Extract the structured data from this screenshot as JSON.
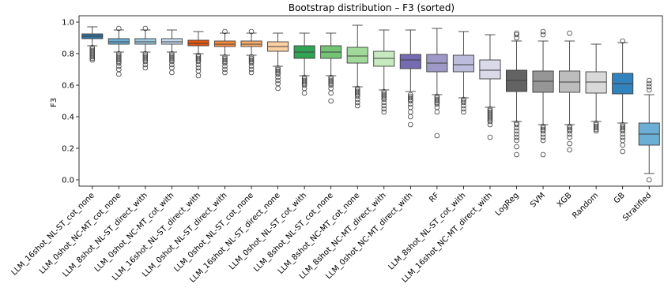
{
  "chart_data": {
    "type": "box",
    "title": "Bootstrap distribution – F3 (sorted)",
    "xlabel": "",
    "ylabel": "F3",
    "ylim": [
      -0.04,
      1.04
    ],
    "yticks": [
      0.0,
      0.2,
      0.4,
      0.6,
      0.8,
      1.0
    ],
    "ytick_labels": [
      "0.0",
      "0.2",
      "0.4",
      "0.6",
      "0.8",
      "1.0"
    ],
    "grid": false,
    "categories": [
      "LLM_16shot_NL-ST_cot_none",
      "LLM_0shot_NC-MT_cot_none",
      "LLM_8shot_NL-ST_direct_with",
      "LLM_0shot_NC-MT_cot_with",
      "LLM_16shot_NL-ST_direct_with",
      "LLM_0shot_NL-ST_direct_with",
      "LLM_0shot_NL-ST_cot_none",
      "LLM_16shot_NL-ST_direct_none",
      "LLM_0shot_NL-ST_cot_with",
      "LLM_8shot_NL-ST_cot_none",
      "LLM_8shot_NC-MT_cot_none",
      "LLM_8shot_NC-MT_direct_with",
      "LLM_0shot_NC-MT_direct_with",
      "RF",
      "LLM_8shot_NL-ST_cot_with",
      "LLM_16shot_NC-MT_direct_with",
      "LogReg",
      "SVM",
      "XGB",
      "Random",
      "GB",
      "Stratified"
    ],
    "boxes": [
      {
        "color": "#3274a1",
        "q1": 0.895,
        "median": 0.91,
        "q3": 0.925,
        "whislo": 0.85,
        "whishi": 0.97,
        "fliers": [
          0.76,
          0.77,
          0.78,
          0.79,
          0.8,
          0.81,
          0.82,
          0.83,
          0.84
        ]
      },
      {
        "color": "#6baed6",
        "q1": 0.86,
        "median": 0.875,
        "q3": 0.895,
        "whislo": 0.81,
        "whishi": 0.95,
        "fliers": [
          0.67,
          0.7,
          0.72,
          0.74,
          0.75,
          0.76,
          0.77,
          0.78,
          0.79,
          0.8,
          0.96
        ]
      },
      {
        "color": "#9ecae1",
        "q1": 0.86,
        "median": 0.875,
        "q3": 0.895,
        "whislo": 0.81,
        "whishi": 0.95,
        "fliers": [
          0.71,
          0.73,
          0.75,
          0.76,
          0.77,
          0.78,
          0.79,
          0.8,
          0.96
        ]
      },
      {
        "color": "#c6dbef",
        "q1": 0.86,
        "median": 0.875,
        "q3": 0.895,
        "whislo": 0.81,
        "whishi": 0.95,
        "fliers": [
          0.68,
          0.71,
          0.73,
          0.75,
          0.76,
          0.77,
          0.78,
          0.79,
          0.8
        ]
      },
      {
        "color": "#e6550d",
        "q1": 0.85,
        "median": 0.865,
        "q3": 0.885,
        "whislo": 0.8,
        "whishi": 0.94,
        "fliers": [
          0.66,
          0.69,
          0.71,
          0.73,
          0.75,
          0.76,
          0.77,
          0.78,
          0.79
        ]
      },
      {
        "color": "#fd8d3c",
        "q1": 0.845,
        "median": 0.86,
        "q3": 0.88,
        "whislo": 0.79,
        "whishi": 0.93,
        "fliers": [
          0.68,
          0.7,
          0.72,
          0.74,
          0.75,
          0.76,
          0.77,
          0.78,
          0.94
        ]
      },
      {
        "color": "#fdae6b",
        "q1": 0.845,
        "median": 0.86,
        "q3": 0.88,
        "whislo": 0.79,
        "whishi": 0.93,
        "fliers": [
          0.68,
          0.7,
          0.72,
          0.74,
          0.75,
          0.76,
          0.77,
          0.78,
          0.94
        ]
      },
      {
        "color": "#fdd0a2",
        "q1": 0.815,
        "median": 0.845,
        "q3": 0.875,
        "whislo": 0.72,
        "whishi": 0.93,
        "fliers": [
          0.58,
          0.61,
          0.63,
          0.65,
          0.67,
          0.68,
          0.69,
          0.7,
          0.71
        ]
      },
      {
        "color": "#31a354",
        "q1": 0.77,
        "median": 0.81,
        "q3": 0.85,
        "whislo": 0.66,
        "whishi": 0.93,
        "fliers": [
          0.55,
          0.58,
          0.6,
          0.61,
          0.62,
          0.63,
          0.64,
          0.65
        ]
      },
      {
        "color": "#74c476",
        "q1": 0.77,
        "median": 0.81,
        "q3": 0.85,
        "whislo": 0.66,
        "whishi": 0.93,
        "fliers": [
          0.5,
          0.55,
          0.58,
          0.6,
          0.61,
          0.62,
          0.63,
          0.64,
          0.65
        ]
      },
      {
        "color": "#a1d99b",
        "q1": 0.74,
        "median": 0.785,
        "q3": 0.84,
        "whislo": 0.59,
        "whishi": 0.98,
        "fliers": [
          0.47,
          0.49,
          0.51,
          0.53,
          0.54,
          0.55,
          0.56,
          0.57,
          0.58
        ]
      },
      {
        "color": "#c7e9c0",
        "q1": 0.72,
        "median": 0.77,
        "q3": 0.815,
        "whislo": 0.57,
        "whishi": 0.95,
        "fliers": [
          0.43,
          0.45,
          0.47,
          0.49,
          0.51,
          0.52,
          0.53,
          0.54,
          0.55,
          0.56
        ]
      },
      {
        "color": "#756bb1",
        "q1": 0.705,
        "median": 0.76,
        "q3": 0.795,
        "whislo": 0.56,
        "whishi": 0.95,
        "fliers": [
          0.35,
          0.4,
          0.43,
          0.46,
          0.48,
          0.5,
          0.51,
          0.52,
          0.53,
          0.54
        ]
      },
      {
        "color": "#9e9ac8",
        "q1": 0.685,
        "median": 0.74,
        "q3": 0.795,
        "whislo": 0.54,
        "whishi": 0.96,
        "fliers": [
          0.28,
          0.43,
          0.46,
          0.48,
          0.49,
          0.5,
          0.51,
          0.52,
          0.53
        ]
      },
      {
        "color": "#bcbddc",
        "q1": 0.685,
        "median": 0.73,
        "q3": 0.79,
        "whislo": 0.52,
        "whishi": 0.94,
        "fliers": [
          0.43,
          0.45,
          0.47,
          0.49,
          0.5,
          0.51
        ]
      },
      {
        "color": "#dadaeb",
        "q1": 0.64,
        "median": 0.695,
        "q3": 0.76,
        "whislo": 0.46,
        "whishi": 0.92,
        "fliers": [
          0.27,
          0.35,
          0.37,
          0.38,
          0.39,
          0.4,
          0.41,
          0.42,
          0.43,
          0.44,
          0.45
        ]
      },
      {
        "color": "#636363",
        "q1": 0.56,
        "median": 0.63,
        "q3": 0.695,
        "whislo": 0.37,
        "whishi": 0.88,
        "fliers": [
          0.16,
          0.21,
          0.25,
          0.27,
          0.29,
          0.31,
          0.33,
          0.35,
          0.36,
          0.9,
          0.92,
          0.93
        ]
      },
      {
        "color": "#969696",
        "q1": 0.555,
        "median": 0.625,
        "q3": 0.69,
        "whislo": 0.35,
        "whishi": 0.88,
        "fliers": [
          0.16,
          0.25,
          0.27,
          0.29,
          0.31,
          0.32,
          0.33,
          0.34,
          0.92,
          0.94
        ]
      },
      {
        "color": "#bdbdbd",
        "q1": 0.555,
        "median": 0.62,
        "q3": 0.69,
        "whislo": 0.35,
        "whishi": 0.88,
        "fliers": [
          0.19,
          0.23,
          0.27,
          0.29,
          0.31,
          0.32,
          0.33,
          0.34,
          0.93
        ]
      },
      {
        "color": "#d9d9d9",
        "q1": 0.55,
        "median": 0.62,
        "q3": 0.685,
        "whislo": 0.37,
        "whishi": 0.86,
        "fliers": [
          0.31,
          0.32,
          0.33,
          0.34,
          0.35,
          0.36
        ]
      },
      {
        "color": "#3182bd",
        "q1": 0.545,
        "median": 0.61,
        "q3": 0.675,
        "whislo": 0.36,
        "whishi": 0.87,
        "fliers": [
          0.18,
          0.22,
          0.25,
          0.27,
          0.29,
          0.31,
          0.32,
          0.33,
          0.34,
          0.35,
          0.88
        ]
      },
      {
        "color": "#6baed6",
        "q1": 0.22,
        "median": 0.29,
        "q3": 0.36,
        "whislo": 0.04,
        "whishi": 0.54,
        "fliers": [
          0.0,
          0.57,
          0.59,
          0.61,
          0.63
        ]
      }
    ]
  }
}
